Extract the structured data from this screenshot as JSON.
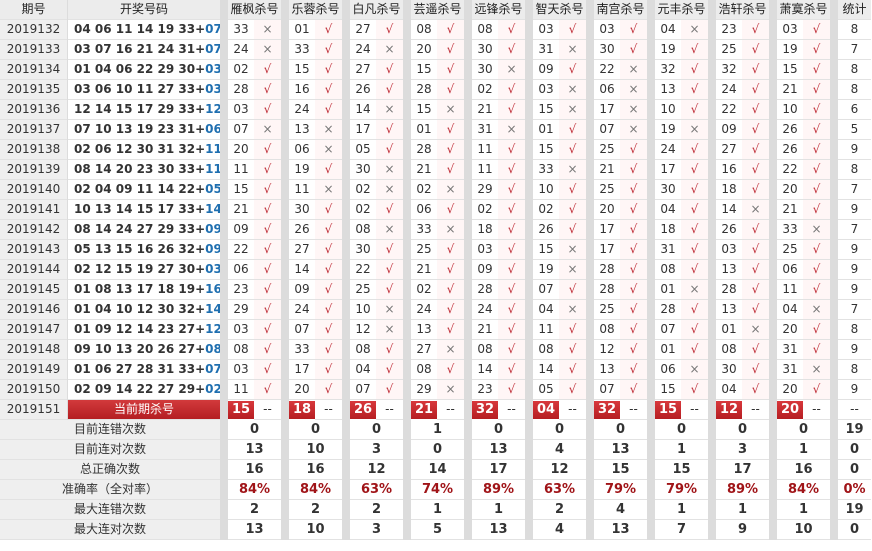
{
  "header": {
    "issue": "期号",
    "draw": "开奖号码",
    "predictors": [
      "雁枫杀号",
      "乐蓉杀号",
      "白凡杀号",
      "芸遥杀号",
      "远锋杀号",
      "智天杀号",
      "南宫杀号",
      "元丰杀号",
      "浩轩杀号",
      "萧寞杀号"
    ],
    "stat": "统计"
  },
  "marks": {
    "ok": "√",
    "no": "×"
  },
  "rows": [
    {
      "issue": "2019132",
      "red": "04 06 11 14 19 33",
      "blue": "07",
      "picks": [
        [
          "33",
          "no"
        ],
        [
          "01",
          "ok"
        ],
        [
          "27",
          "ok"
        ],
        [
          "08",
          "ok"
        ],
        [
          "08",
          "ok"
        ],
        [
          "03",
          "ok"
        ],
        [
          "03",
          "ok"
        ],
        [
          "04",
          "no"
        ],
        [
          "23",
          "ok"
        ],
        [
          "03",
          "ok"
        ]
      ],
      "stat": "8"
    },
    {
      "issue": "2019133",
      "red": "03 07 16 21 24 31",
      "blue": "07",
      "picks": [
        [
          "24",
          "no"
        ],
        [
          "33",
          "ok"
        ],
        [
          "24",
          "no"
        ],
        [
          "20",
          "ok"
        ],
        [
          "30",
          "ok"
        ],
        [
          "31",
          "no"
        ],
        [
          "30",
          "ok"
        ],
        [
          "19",
          "ok"
        ],
        [
          "25",
          "ok"
        ],
        [
          "19",
          "ok"
        ]
      ],
      "stat": "7"
    },
    {
      "issue": "2019134",
      "red": "01 04 06 22 29 30",
      "blue": "03",
      "picks": [
        [
          "02",
          "ok"
        ],
        [
          "15",
          "ok"
        ],
        [
          "27",
          "ok"
        ],
        [
          "15",
          "ok"
        ],
        [
          "30",
          "no"
        ],
        [
          "09",
          "ok"
        ],
        [
          "22",
          "no"
        ],
        [
          "32",
          "ok"
        ],
        [
          "32",
          "ok"
        ],
        [
          "15",
          "ok"
        ]
      ],
      "stat": "8"
    },
    {
      "issue": "2019135",
      "red": "03 06 10 11 27 33",
      "blue": "03",
      "picks": [
        [
          "28",
          "ok"
        ],
        [
          "16",
          "ok"
        ],
        [
          "26",
          "ok"
        ],
        [
          "28",
          "ok"
        ],
        [
          "02",
          "ok"
        ],
        [
          "03",
          "no"
        ],
        [
          "06",
          "no"
        ],
        [
          "13",
          "ok"
        ],
        [
          "24",
          "ok"
        ],
        [
          "21",
          "ok"
        ]
      ],
      "stat": "8"
    },
    {
      "issue": "2019136",
      "red": "12 14 15 17 29 33",
      "blue": "12",
      "picks": [
        [
          "03",
          "ok"
        ],
        [
          "24",
          "ok"
        ],
        [
          "14",
          "no"
        ],
        [
          "15",
          "no"
        ],
        [
          "21",
          "ok"
        ],
        [
          "15",
          "no"
        ],
        [
          "17",
          "no"
        ],
        [
          "10",
          "ok"
        ],
        [
          "22",
          "ok"
        ],
        [
          "10",
          "ok"
        ]
      ],
      "stat": "6"
    },
    {
      "issue": "2019137",
      "red": "07 10 13 19 23 31",
      "blue": "06",
      "picks": [
        [
          "07",
          "no"
        ],
        [
          "13",
          "no"
        ],
        [
          "17",
          "ok"
        ],
        [
          "01",
          "ok"
        ],
        [
          "31",
          "no"
        ],
        [
          "01",
          "ok"
        ],
        [
          "07",
          "no"
        ],
        [
          "19",
          "no"
        ],
        [
          "09",
          "ok"
        ],
        [
          "26",
          "ok"
        ]
      ],
      "stat": "5"
    },
    {
      "issue": "2019138",
      "red": "02 06 12 30 31 32",
      "blue": "11",
      "picks": [
        [
          "20",
          "ok"
        ],
        [
          "06",
          "no"
        ],
        [
          "05",
          "ok"
        ],
        [
          "28",
          "ok"
        ],
        [
          "11",
          "ok"
        ],
        [
          "15",
          "ok"
        ],
        [
          "25",
          "ok"
        ],
        [
          "24",
          "ok"
        ],
        [
          "27",
          "ok"
        ],
        [
          "26",
          "ok"
        ]
      ],
      "stat": "9"
    },
    {
      "issue": "2019139",
      "red": "08 14 20 23 30 33",
      "blue": "11",
      "picks": [
        [
          "11",
          "ok"
        ],
        [
          "19",
          "ok"
        ],
        [
          "30",
          "no"
        ],
        [
          "21",
          "ok"
        ],
        [
          "11",
          "ok"
        ],
        [
          "33",
          "no"
        ],
        [
          "21",
          "ok"
        ],
        [
          "17",
          "ok"
        ],
        [
          "16",
          "ok"
        ],
        [
          "22",
          "ok"
        ]
      ],
      "stat": "8"
    },
    {
      "issue": "2019140",
      "red": "02 04 09 11 14 22",
      "blue": "05",
      "picks": [
        [
          "15",
          "ok"
        ],
        [
          "11",
          "no"
        ],
        [
          "02",
          "no"
        ],
        [
          "02",
          "no"
        ],
        [
          "29",
          "ok"
        ],
        [
          "10",
          "ok"
        ],
        [
          "25",
          "ok"
        ],
        [
          "30",
          "ok"
        ],
        [
          "18",
          "ok"
        ],
        [
          "20",
          "ok"
        ]
      ],
      "stat": "7"
    },
    {
      "issue": "2019141",
      "red": "10 13 14 15 17 33",
      "blue": "14",
      "picks": [
        [
          "21",
          "ok"
        ],
        [
          "30",
          "ok"
        ],
        [
          "02",
          "ok"
        ],
        [
          "06",
          "ok"
        ],
        [
          "02",
          "ok"
        ],
        [
          "02",
          "ok"
        ],
        [
          "20",
          "ok"
        ],
        [
          "04",
          "ok"
        ],
        [
          "14",
          "no"
        ],
        [
          "21",
          "ok"
        ]
      ],
      "stat": "9"
    },
    {
      "issue": "2019142",
      "red": "08 14 24 27 29 33",
      "blue": "09",
      "picks": [
        [
          "09",
          "ok"
        ],
        [
          "26",
          "ok"
        ],
        [
          "08",
          "no"
        ],
        [
          "33",
          "no"
        ],
        [
          "18",
          "ok"
        ],
        [
          "26",
          "ok"
        ],
        [
          "17",
          "ok"
        ],
        [
          "18",
          "ok"
        ],
        [
          "26",
          "ok"
        ],
        [
          "33",
          "no"
        ]
      ],
      "stat": "7"
    },
    {
      "issue": "2019143",
      "red": "05 13 15 16 26 32",
      "blue": "09",
      "picks": [
        [
          "22",
          "ok"
        ],
        [
          "27",
          "ok"
        ],
        [
          "30",
          "ok"
        ],
        [
          "25",
          "ok"
        ],
        [
          "03",
          "ok"
        ],
        [
          "15",
          "no"
        ],
        [
          "17",
          "ok"
        ],
        [
          "31",
          "ok"
        ],
        [
          "03",
          "ok"
        ],
        [
          "25",
          "ok"
        ]
      ],
      "stat": "9"
    },
    {
      "issue": "2019144",
      "red": "02 12 15 19 27 30",
      "blue": "03",
      "picks": [
        [
          "06",
          "ok"
        ],
        [
          "14",
          "ok"
        ],
        [
          "22",
          "ok"
        ],
        [
          "21",
          "ok"
        ],
        [
          "09",
          "ok"
        ],
        [
          "19",
          "no"
        ],
        [
          "28",
          "ok"
        ],
        [
          "08",
          "ok"
        ],
        [
          "13",
          "ok"
        ],
        [
          "06",
          "ok"
        ]
      ],
      "stat": "9"
    },
    {
      "issue": "2019145",
      "red": "01 08 13 17 18 19",
      "blue": "16",
      "picks": [
        [
          "23",
          "ok"
        ],
        [
          "09",
          "ok"
        ],
        [
          "25",
          "ok"
        ],
        [
          "02",
          "ok"
        ],
        [
          "28",
          "ok"
        ],
        [
          "07",
          "ok"
        ],
        [
          "28",
          "ok"
        ],
        [
          "01",
          "no"
        ],
        [
          "28",
          "ok"
        ],
        [
          "11",
          "ok"
        ]
      ],
      "stat": "9"
    },
    {
      "issue": "2019146",
      "red": "01 04 10 12 30 32",
      "blue": "14",
      "picks": [
        [
          "29",
          "ok"
        ],
        [
          "24",
          "ok"
        ],
        [
          "10",
          "no"
        ],
        [
          "24",
          "ok"
        ],
        [
          "24",
          "ok"
        ],
        [
          "04",
          "no"
        ],
        [
          "25",
          "ok"
        ],
        [
          "28",
          "ok"
        ],
        [
          "13",
          "ok"
        ],
        [
          "04",
          "no"
        ]
      ],
      "stat": "7"
    },
    {
      "issue": "2019147",
      "red": "01 09 12 14 23 27",
      "blue": "12",
      "picks": [
        [
          "03",
          "ok"
        ],
        [
          "07",
          "ok"
        ],
        [
          "12",
          "no"
        ],
        [
          "13",
          "ok"
        ],
        [
          "21",
          "ok"
        ],
        [
          "11",
          "ok"
        ],
        [
          "08",
          "ok"
        ],
        [
          "07",
          "ok"
        ],
        [
          "01",
          "no"
        ],
        [
          "20",
          "ok"
        ]
      ],
      "stat": "8"
    },
    {
      "issue": "2019148",
      "red": "09 10 13 20 26 27",
      "blue": "08",
      "picks": [
        [
          "08",
          "ok"
        ],
        [
          "33",
          "ok"
        ],
        [
          "08",
          "ok"
        ],
        [
          "27",
          "no"
        ],
        [
          "08",
          "ok"
        ],
        [
          "08",
          "ok"
        ],
        [
          "12",
          "ok"
        ],
        [
          "01",
          "ok"
        ],
        [
          "08",
          "ok"
        ],
        [
          "31",
          "ok"
        ]
      ],
      "stat": "9"
    },
    {
      "issue": "2019149",
      "red": "01 06 27 28 31 33",
      "blue": "07",
      "picks": [
        [
          "03",
          "ok"
        ],
        [
          "17",
          "ok"
        ],
        [
          "04",
          "ok"
        ],
        [
          "08",
          "ok"
        ],
        [
          "14",
          "ok"
        ],
        [
          "14",
          "ok"
        ],
        [
          "13",
          "ok"
        ],
        [
          "06",
          "no"
        ],
        [
          "30",
          "ok"
        ],
        [
          "31",
          "no"
        ]
      ],
      "stat": "8"
    },
    {
      "issue": "2019150",
      "red": "02 09 14 22 27 29",
      "blue": "02",
      "picks": [
        [
          "11",
          "ok"
        ],
        [
          "20",
          "ok"
        ],
        [
          "07",
          "ok"
        ],
        [
          "29",
          "no"
        ],
        [
          "23",
          "ok"
        ],
        [
          "05",
          "ok"
        ],
        [
          "07",
          "ok"
        ],
        [
          "15",
          "ok"
        ],
        [
          "04",
          "ok"
        ],
        [
          "20",
          "ok"
        ]
      ],
      "stat": "9"
    }
  ],
  "current": {
    "issue": "2019151",
    "label": "当前期杀号",
    "picks": [
      "15",
      "18",
      "26",
      "21",
      "32",
      "04",
      "32",
      "15",
      "12",
      "20"
    ],
    "placeholder": "--",
    "stat": "--"
  },
  "summary": [
    {
      "label": "目前连错次数",
      "values": [
        "0",
        "0",
        "0",
        "1",
        "0",
        "0",
        "0",
        "0",
        "0",
        "0",
        "19"
      ]
    },
    {
      "label": "目前连对次数",
      "values": [
        "13",
        "10",
        "3",
        "0",
        "13",
        "4",
        "13",
        "1",
        "3",
        "1",
        "0"
      ]
    },
    {
      "label": "总正确次数",
      "values": [
        "16",
        "16",
        "12",
        "14",
        "17",
        "12",
        "15",
        "15",
        "17",
        "16",
        "0"
      ]
    },
    {
      "label": "准确率（全对率）",
      "values": [
        "84%",
        "84%",
        "63%",
        "74%",
        "89%",
        "63%",
        "79%",
        "79%",
        "89%",
        "84%",
        "0%"
      ],
      "pct": true
    },
    {
      "label": "最大连错次数",
      "values": [
        "2",
        "2",
        "2",
        "1",
        "1",
        "2",
        "4",
        "1",
        "1",
        "1",
        "19"
      ]
    },
    {
      "label": "最大连对次数",
      "values": [
        "13",
        "10",
        "3",
        "5",
        "13",
        "4",
        "13",
        "7",
        "9",
        "10",
        "0"
      ]
    }
  ]
}
